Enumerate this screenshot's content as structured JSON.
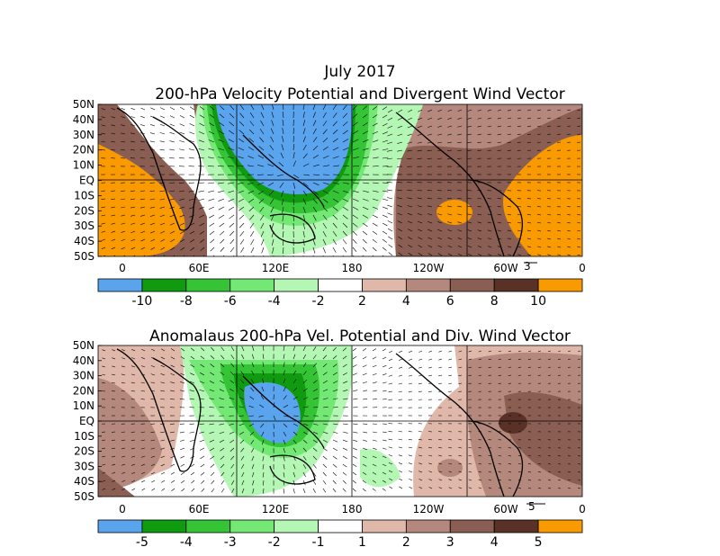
{
  "page_title": "July 2017",
  "maps": [
    {
      "title": "200-hPa Velocity Potential and Divergent Wind Vector",
      "lat_labels": [
        "50N",
        "40N",
        "30N",
        "20N",
        "10N",
        "EQ",
        "10S",
        "20S",
        "30S",
        "40S",
        "50S"
      ],
      "lon_labels": [
        "0",
        "60E",
        "120E",
        "180",
        "120W",
        "60W",
        "0"
      ],
      "vector_ref": "3",
      "colorbar": {
        "labels": [
          "-10",
          "-8",
          "-6",
          "-4",
          "-2",
          "2",
          "4",
          "6",
          "8",
          "10"
        ],
        "colors": [
          "#5aa4ee",
          "#0f9a10",
          "#35c435",
          "#74e874",
          "#b4f6b4",
          "#ffffff",
          "#e0b8aa",
          "#b4887c",
          "#8a5e52",
          "#5a3126",
          "#f99a00"
        ]
      }
    },
    {
      "title": "Anomalaus 200-hPa Vel. Potential and Div. Wind Vector",
      "lat_labels": [
        "50N",
        "40N",
        "30N",
        "20N",
        "10N",
        "EQ",
        "10S",
        "20S",
        "30S",
        "40S",
        "50S"
      ],
      "lon_labels": [
        "0",
        "60E",
        "120E",
        "180",
        "120W",
        "60W",
        "0"
      ],
      "vector_ref": "5",
      "colorbar": {
        "labels": [
          "-5",
          "-4",
          "-3",
          "-2",
          "-1",
          "1",
          "2",
          "3",
          "4",
          "5"
        ],
        "colors": [
          "#5aa4ee",
          "#0f9a10",
          "#35c435",
          "#74e874",
          "#b4f6b4",
          "#ffffff",
          "#e0b8aa",
          "#b4887c",
          "#8a5e52",
          "#5a3126",
          "#f99a00"
        ]
      }
    }
  ]
}
